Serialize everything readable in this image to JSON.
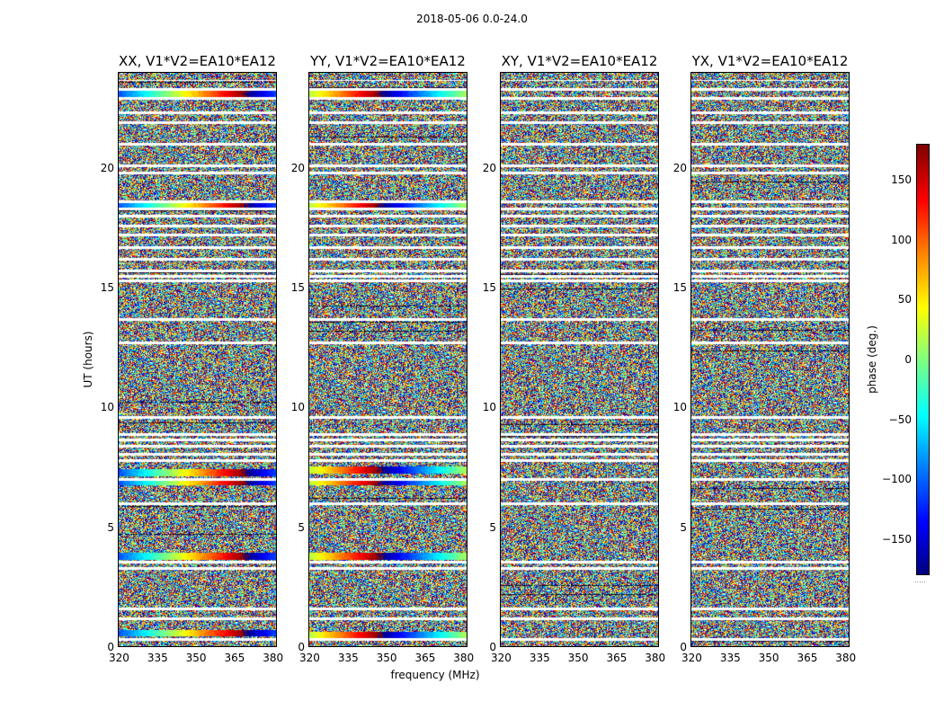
{
  "chart_data": {
    "type": "heatmap",
    "suptitle": "2018-05-06 0.0-24.0",
    "xlabel": "frequency (MHz)",
    "ylabel": "UT (hours)",
    "xlim": [
      320,
      382
    ],
    "ylim": [
      0,
      24
    ],
    "xticks": [
      "320",
      "335",
      "350",
      "365",
      "380"
    ],
    "yticks": [
      "0",
      "5",
      "10",
      "15",
      "20"
    ],
    "panels": [
      {
        "title": "XX, V1*V2=EA10*EA12",
        "structured_bands_ut": [
          0.6,
          3.8,
          6.9,
          7.3,
          18.4,
          23.1
        ]
      },
      {
        "title": "YY, V1*V2=EA10*EA12",
        "structured_bands_ut": [
          0.5,
          3.8,
          6.9,
          7.4,
          18.4,
          23.1
        ]
      },
      {
        "title": "XY, V1*V2=EA10*EA12",
        "structured_bands_ut": []
      },
      {
        "title": "YX, V1*V2=EA10*EA12",
        "structured_bands_ut": []
      }
    ],
    "gap_rows_ut": [
      0.35,
      1.2,
      1.6,
      3.3,
      3.55,
      6.0,
      7.0,
      7.8,
      8.05,
      8.4,
      8.65,
      8.9,
      9.6,
      12.7,
      13.7,
      15.3,
      15.5,
      15.7,
      16.2,
      16.7,
      17.2,
      17.6,
      18.0,
      18.3,
      18.6,
      19.8,
      20.1,
      21.0,
      21.9,
      22.3,
      22.9,
      23.3
    ],
    "colorbar": {
      "label": "phase (deg.)",
      "range": [
        -180,
        180
      ],
      "ticks": [
        "150",
        "100",
        "50",
        "0",
        "−50",
        "−100",
        "−150"
      ],
      "tick_values": [
        150,
        100,
        50,
        0,
        -50,
        -100,
        -150
      ],
      "colormap": "jet"
    }
  }
}
